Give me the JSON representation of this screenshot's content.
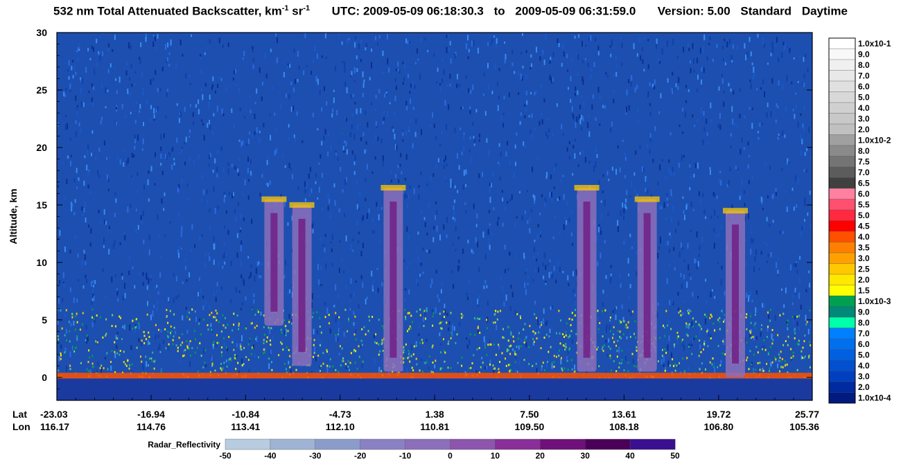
{
  "title": {
    "main": "532 nm Total Attenuated Backscatter, km",
    "exp1": "-1",
    "mid": " sr",
    "exp2": "-1",
    "utc_label": "UTC:",
    "utc_start": "2009-05-09 06:18:30.3",
    "to": "to",
    "utc_end": "2009-05-09 06:31:59.0",
    "version": "Version: 5.00",
    "standard": "Standard",
    "daytime": "Daytime"
  },
  "labels": {
    "lat": "Lat",
    "lon": "Lon",
    "radar": "Radar_Reflectivity"
  },
  "chart_data": {
    "type": "heatmap",
    "ylabel": "Altitude, km",
    "ylim": [
      -2,
      30
    ],
    "yticks": [
      0,
      5,
      10,
      15,
      20,
      25,
      30
    ],
    "ytick_labels": [
      "0",
      "5",
      "10",
      "15",
      "20",
      "25",
      "30"
    ],
    "xticks_lat": [
      "-23.03",
      "-16.94",
      "-10.84",
      "-4.73",
      "1.38",
      "7.50",
      "13.61",
      "19.72",
      "25.77"
    ],
    "xticks_lon": [
      "116.17",
      "114.76",
      "113.41",
      "112.10",
      "110.81",
      "109.50",
      "108.18",
      "106.80",
      "105.36"
    ],
    "backscatter_colorbar": {
      "labels": [
        "1.0x10-1",
        "9.0",
        "8.0",
        "7.0",
        "6.0",
        "5.0",
        "4.0",
        "3.0",
        "2.0",
        "1.0x10-2",
        "8.0",
        "7.5",
        "7.0",
        "6.5",
        "6.0",
        "5.5",
        "5.0",
        "4.5",
        "4.0",
        "3.5",
        "3.0",
        "2.5",
        "2.0",
        "1.5",
        "1.0x10-3",
        "9.0",
        "8.0",
        "7.0",
        "6.0",
        "5.0",
        "4.0",
        "3.0",
        "2.0",
        "1.0x10-4"
      ],
      "colors": [
        "#ffffff",
        "#f8f8f8",
        "#f0f0f0",
        "#e8e8e8",
        "#e0e0e0",
        "#d8d8d8",
        "#d0d0d0",
        "#c8c8c8",
        "#c0c0c0",
        "#a0a0a0",
        "#8a8a8a",
        "#747474",
        "#5c5c5c",
        "#404040",
        "#ff80a0",
        "#ff5070",
        "#ff2a40",
        "#ff0000",
        "#ff5000",
        "#ff8000",
        "#ffa000",
        "#ffc800",
        "#ffe800",
        "#ffff00",
        "#00a050",
        "#008878",
        "#00ffaa",
        "#0080ff",
        "#0070ee",
        "#0060e0",
        "#0050d0",
        "#0040c0",
        "#002aa0",
        "#001a80"
      ]
    },
    "radar_colorbar": {
      "ticks": [
        "-50",
        "-40",
        "-30",
        "-20",
        "-10",
        "0",
        "10",
        "20",
        "30",
        "40",
        "50"
      ],
      "colors": [
        "#b8cce0",
        "#9fb3d4",
        "#8b9ccb",
        "#8a80c4",
        "#8c6fba",
        "#8d55ae",
        "#8a2e9a",
        "#70107a",
        "#4a0058",
        "#3a1090"
      ]
    },
    "features": [
      {
        "kind": "cloud",
        "lat": -9.0,
        "base_km": 4.5,
        "top_km": 15.5
      },
      {
        "kind": "cloud",
        "lat": -7.2,
        "base_km": 1.0,
        "top_km": 15.0
      },
      {
        "kind": "cloud",
        "lat": -1.3,
        "base_km": 0.5,
        "top_km": 16.5
      },
      {
        "kind": "cloud",
        "lat": 11.2,
        "base_km": 0.5,
        "top_km": 16.5
      },
      {
        "kind": "cloud",
        "lat": 15.1,
        "base_km": 0.5,
        "top_km": 15.5
      },
      {
        "kind": "cloud",
        "lat": 20.8,
        "base_km": 0.0,
        "top_km": 14.5
      }
    ]
  }
}
